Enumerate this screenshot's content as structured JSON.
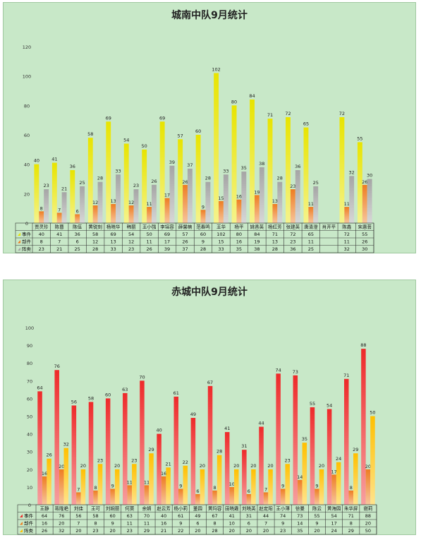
{
  "chart_data": [
    {
      "type": "bar",
      "title": "城南中队9月统计",
      "categories": [
        "贾灵珍",
        "陈曹",
        "陈伍",
        "黄锐刻",
        "杨晓华",
        "韩丽",
        "王小强",
        "李培容",
        "薛馨楠",
        "范春鸣",
        "王华",
        "杨平",
        "姚香英",
        "杨红芳",
        "张建英",
        "唐清澄",
        "肖开平",
        "陈鑫",
        "宋惠芸"
      ],
      "ylim": [
        0,
        120
      ],
      "yticks": [
        0,
        20,
        40,
        60,
        80,
        100,
        120
      ],
      "series": [
        {
          "name": "事件",
          "color": "#e8e400",
          "values": [
            40,
            41,
            36,
            58,
            69,
            54,
            50,
            69,
            57,
            60,
            102,
            80,
            84,
            71,
            72,
            65,
            null,
            72,
            55
          ]
        },
        {
          "name": "部件",
          "color": "#ee7d22",
          "values": [
            8,
            7,
            6,
            12,
            13,
            12,
            11,
            17,
            26,
            9,
            15,
            16,
            19,
            13,
            23,
            11,
            null,
            11,
            26
          ]
        },
        {
          "name": "阵类",
          "color": "#a5a5a5",
          "values": [
            23,
            21,
            25,
            28,
            33,
            23,
            26,
            39,
            37,
            28,
            33,
            35,
            38,
            28,
            36,
            25,
            null,
            32,
            30
          ]
        }
      ],
      "grid": false,
      "legend": "table-bottom"
    },
    {
      "type": "bar",
      "title": "赤城中队9月统计",
      "categories": [
        "王静",
        "蒋隆艳",
        "刘佳",
        "王可",
        "刘婉丽",
        "何莫",
        "余娟",
        "赵云芳",
        "杨小莉",
        "董园",
        "黄玛容",
        "田晓霞",
        "刘晓英",
        "赵定阳",
        "王小薄",
        "徐曼",
        "陈云",
        "黄海园",
        "朱华屏",
        "谢莉"
      ],
      "ylim": [
        0,
        100
      ],
      "yticks": [
        0,
        10,
        20,
        30,
        40,
        50,
        60,
        70,
        80,
        90,
        100
      ],
      "series": [
        {
          "name": "事件",
          "color": "#ee2a2a",
          "values": [
            64,
            76,
            56,
            58,
            60,
            63,
            70,
            40,
            61,
            49,
            67,
            41,
            31,
            44,
            74,
            73,
            55,
            54,
            71,
            88
          ]
        },
        {
          "name": "部件",
          "color": "#ee7d22",
          "values": [
            16,
            20,
            7,
            8,
            9,
            11,
            11,
            16,
            9,
            6,
            8,
            10,
            6,
            7,
            9,
            14,
            9,
            17,
            8,
            20
          ]
        },
        {
          "name": "阵类",
          "color": "#ffc000",
          "values": [
            26,
            32,
            20,
            23,
            20,
            23,
            29,
            21,
            22,
            20,
            28,
            20,
            20,
            20,
            23,
            35,
            20,
            24,
            29,
            50
          ]
        }
      ],
      "grid": false,
      "legend": "table-bottom"
    }
  ]
}
